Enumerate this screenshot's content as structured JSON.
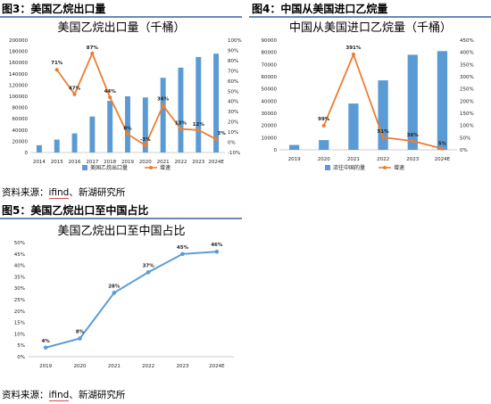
{
  "headers": {
    "fig3": "图3：美国乙烷出口量",
    "fig4": "图4：中国从美国进口乙烷量",
    "fig5": "图5：美国乙烷出口至中国占比"
  },
  "source1": {
    "prefix": "资料来源：",
    "tool": "ifind",
    "rest": "、新湖研究所"
  },
  "source2": {
    "prefix": "资料来源：",
    "tool": "ifind",
    "rest": "、新湖研究所"
  },
  "colors": {
    "bar": "#5b9bd5",
    "line_orange": "#ed7d31",
    "line_blue": "#5b9bd5",
    "neg_label": "#ff0000",
    "rule": "#6b87b9"
  },
  "chart_data": [
    {
      "type": "bar",
      "title": "美国乙烷出口量（千桶）",
      "categories": [
        "2014",
        "2015",
        "2016",
        "2017",
        "2018",
        "2019",
        "2020",
        "2021",
        "2022",
        "2023",
        "2024E"
      ],
      "series": [
        {
          "name": "美国乙烷出口量",
          "type": "bar",
          "axis": "left",
          "values": [
            13000,
            23000,
            34000,
            64000,
            92000,
            100000,
            98000,
            133000,
            151000,
            170000,
            176000
          ]
        },
        {
          "name": "增速",
          "type": "line",
          "axis": "right",
          "values": [
            null,
            71,
            47,
            87,
            44,
            8,
            -3,
            36,
            13,
            12,
            3
          ]
        }
      ],
      "point_labels": [
        "",
        "71%",
        "47%",
        "87%",
        "44%",
        "8%",
        "-3%",
        "36%",
        "13%",
        "12%",
        "3%"
      ],
      "ylim_left": [
        0,
        200000
      ],
      "left_ticks": [
        "0",
        "20000",
        "40000",
        "60000",
        "80000",
        "100000",
        "120000",
        "140000",
        "160000",
        "180000",
        "200000"
      ],
      "ylim_right": [
        -10,
        100
      ],
      "right_ticks": [
        "-10%",
        "0%",
        "10%",
        "20%",
        "30%",
        "40%",
        "50%",
        "60%",
        "70%",
        "80%",
        "90%",
        "100%"
      ],
      "legend_position": "bottom"
    },
    {
      "type": "bar",
      "title": "中国从美国进口乙烷量（千桶）",
      "categories": [
        "2019",
        "2020",
        "2021",
        "2022",
        "2023",
        "2024E"
      ],
      "series": [
        {
          "name": "流往中国的量",
          "type": "bar",
          "axis": "left",
          "values": [
            4000,
            8000,
            38000,
            57000,
            78000,
            81000
          ]
        },
        {
          "name": "增速",
          "type": "line",
          "axis": "right",
          "values": [
            null,
            99,
            391,
            51,
            36,
            5
          ]
        }
      ],
      "point_labels": [
        "",
        "99%",
        "391%",
        "51%",
        "36%",
        "5%"
      ],
      "ylim_left": [
        0,
        90000
      ],
      "left_ticks": [
        "0",
        "10000",
        "20000",
        "30000",
        "40000",
        "50000",
        "60000",
        "70000",
        "80000",
        "90000"
      ],
      "ylim_right": [
        0,
        450
      ],
      "right_ticks": [
        "0%",
        "50%",
        "100%",
        "150%",
        "200%",
        "250%",
        "300%",
        "350%",
        "400%",
        "450%"
      ],
      "legend_position": "bottom"
    },
    {
      "type": "line",
      "title": "美国乙烷出口至中国占比",
      "categories": [
        "2019",
        "2020",
        "2021",
        "2022",
        "2023",
        "2024E"
      ],
      "series": [
        {
          "name": "美国乙烷出口至中国占比",
          "values": [
            4,
            8,
            28,
            37,
            45,
            46
          ]
        }
      ],
      "point_labels": [
        "4%",
        "8%",
        "28%",
        "37%",
        "45%",
        "46%"
      ],
      "ylim": [
        0,
        50
      ],
      "y_ticks": [
        "0%",
        "5%",
        "10%",
        "15%",
        "20%",
        "25%",
        "30%",
        "35%",
        "40%",
        "45%",
        "50%"
      ]
    }
  ]
}
